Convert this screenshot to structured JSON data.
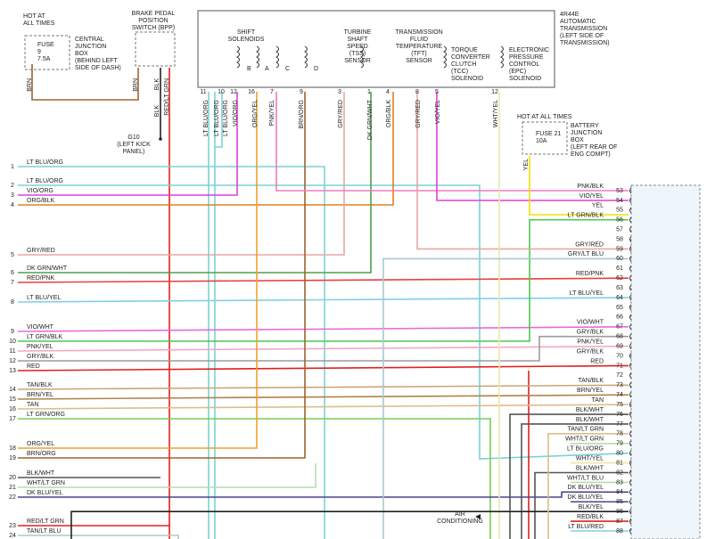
{
  "top_left": {
    "hot": [
      "HOT AT",
      "ALL TIMES"
    ],
    "fuse": [
      "FUSE",
      "9",
      "7.5A"
    ],
    "junction_box": [
      "CENTRAL",
      "JUNCTION",
      "BOX",
      "(BEHIND LEFT",
      "SIDE OF DASH)"
    ],
    "wire_brn_1": "BRN",
    "wire_brn_2": "BRN",
    "bpp": [
      "BRAKE PEDAL",
      "POSITION",
      "SWITCH (BPP)"
    ],
    "wire_blk_1": "BLK",
    "wire_red_lt_grn": "RED/LT GRN",
    "wire_blk_2": "BLK",
    "ground": [
      "G10",
      "(LEFT KICK",
      "PANEL)"
    ]
  },
  "transmission": {
    "title": [
      "4R44E",
      "AUTOMATIC",
      "TRANSMISSION",
      "(LEFT SIDE OF",
      "TRANSMISSION)"
    ],
    "shift_solenoids": [
      "SHIFT",
      "SOLENOIDS"
    ],
    "solenoid_letters": [
      "B",
      "A",
      "C",
      "D"
    ],
    "components": [
      [
        "TURBINE",
        "SHAFT",
        "SPEED",
        "(TSS)",
        "SENSOR"
      ],
      [
        "TRANSMISSION",
        "FLUID",
        "TEMPERATURE",
        "(TFT)",
        "SENSOR"
      ],
      [
        "TORQUE",
        "CONVERTER",
        "CLUTCH",
        "(TCC)",
        "SOLENOID"
      ],
      [
        "ELECTRONIC",
        "PRESSURE",
        "CONTROL",
        "(EPC)",
        "SOLENOID"
      ]
    ],
    "pins": [
      11,
      10,
      12,
      16,
      7,
      9,
      3,
      1,
      4,
      8,
      5,
      12
    ],
    "wires": [
      "LT BLU/ORG",
      "LT BLU/ORG",
      "LT BLU/ORG",
      "VIO/ORG",
      "ORG/YEL",
      "PNK/YEL",
      "BRN/ORG",
      "GRY/RED",
      "DK GRN/WHT",
      "ORG/BLK",
      "GRY/RED",
      "VIO/YEL",
      "WHT/YEL"
    ]
  },
  "battery": {
    "hot": "HOT AT ALL TIMES",
    "fuse": [
      "FUSE 21",
      "10A"
    ],
    "box": [
      "BATTERY",
      "JUNCTION",
      "BOX",
      "(LEFT REAR OF",
      "ENG COMPT)"
    ],
    "wire": "YEL"
  },
  "left_pins": [
    {
      "pin": 1,
      "wire": "LT BLU/ORG"
    },
    {
      "pin": 2,
      "wire": "LT BLU/ORG"
    },
    {
      "pin": 3,
      "wire": "VIO/ORG"
    },
    {
      "pin": 4,
      "wire": "ORG/BLK"
    },
    {
      "pin": 5,
      "wire": "GRY/RED"
    },
    {
      "pin": 6,
      "wire": "DK GRN/WHT"
    },
    {
      "pin": 7,
      "wire": "RED/PNK"
    },
    {
      "pin": 8,
      "wire": "LT BLU/YEL"
    },
    {
      "pin": 9,
      "wire": "VIO/WHT"
    },
    {
      "pin": 10,
      "wire": "LT GRN/BLK"
    },
    {
      "pin": 11,
      "wire": "PNK/YEL"
    },
    {
      "pin": 12,
      "wire": "GRY/BLK"
    },
    {
      "pin": 13,
      "wire": "RED"
    },
    {
      "pin": 14,
      "wire": "TAN/BLK"
    },
    {
      "pin": 15,
      "wire": "BRN/YEL"
    },
    {
      "pin": 16,
      "wire": "TAN"
    },
    {
      "pin": 17,
      "wire": "LT GRN/ORG"
    },
    {
      "pin": 18,
      "wire": "ORG/YEL"
    },
    {
      "pin": 19,
      "wire": "BRN/ORG"
    },
    {
      "pin": 20,
      "wire": "BLK/WHT"
    },
    {
      "pin": 21,
      "wire": "WHT/LT GRN"
    },
    {
      "pin": 22,
      "wire": "DK BLU/YEL"
    },
    {
      "pin": 23,
      "wire": "RED/LT GRN"
    },
    {
      "pin": 24,
      "wire": "TAN/LT BLU"
    }
  ],
  "right_pins": [
    {
      "pin": 53,
      "wire": "PNK/BLK"
    },
    {
      "pin": 54,
      "wire": "VIO/YEL"
    },
    {
      "pin": 55,
      "wire": "YEL"
    },
    {
      "pin": 56,
      "wire": "LT GRN/BLK"
    },
    {
      "pin": 57,
      "wire": null
    },
    {
      "pin": 58,
      "wire": null
    },
    {
      "pin": 59,
      "wire": "GRY/RED"
    },
    {
      "pin": 60,
      "wire": "GRY/LT BLU"
    },
    {
      "pin": 61,
      "wire": null
    },
    {
      "pin": 62,
      "wire": "RED/PNK"
    },
    {
      "pin": 63,
      "wire": null
    },
    {
      "pin": 64,
      "wire": "LT BLU/YEL"
    },
    {
      "pin": 65,
      "wire": null
    },
    {
      "pin": 66,
      "wire": null
    },
    {
      "pin": 67,
      "wire": "VIO/WHT"
    },
    {
      "pin": 68,
      "wire": "GRY/BLK"
    },
    {
      "pin": 69,
      "wire": "PNK/YEL"
    },
    {
      "pin": 70,
      "wire": "GRY/BLK"
    },
    {
      "pin": 71,
      "wire": "RED"
    },
    {
      "pin": 72,
      "wire": null
    },
    {
      "pin": 73,
      "wire": "TAN/BLK"
    },
    {
      "pin": 74,
      "wire": "BRN/YEL"
    },
    {
      "pin": 75,
      "wire": "TAN"
    },
    {
      "pin": 76,
      "wire": "BLK/WHT"
    },
    {
      "pin": 77,
      "wire": "BLK/WHT"
    },
    {
      "pin": 78,
      "wire": "TAN/LT GRN"
    },
    {
      "pin": 79,
      "wire": "WHT/LT GRN"
    },
    {
      "pin": 80,
      "wire": "LT BLU/ORG"
    },
    {
      "pin": 81,
      "wire": "WHT/YEL"
    },
    {
      "pin": 82,
      "wire": "BLK/WHT"
    },
    {
      "pin": 83,
      "wire": "WHT/LT BLU"
    },
    {
      "pin": 84,
      "wire": "DK BLU/YEL"
    },
    {
      "pin": 85,
      "wire": "DK BLU/YEL"
    },
    {
      "pin": 86,
      "wire": "BLK/YEL"
    },
    {
      "pin": 87,
      "wire": "RED/BLK"
    },
    {
      "pin": 88,
      "wire": "LT BLU/RED"
    }
  ],
  "air_conditioning": [
    "AIR",
    "CONDITIONING"
  ]
}
